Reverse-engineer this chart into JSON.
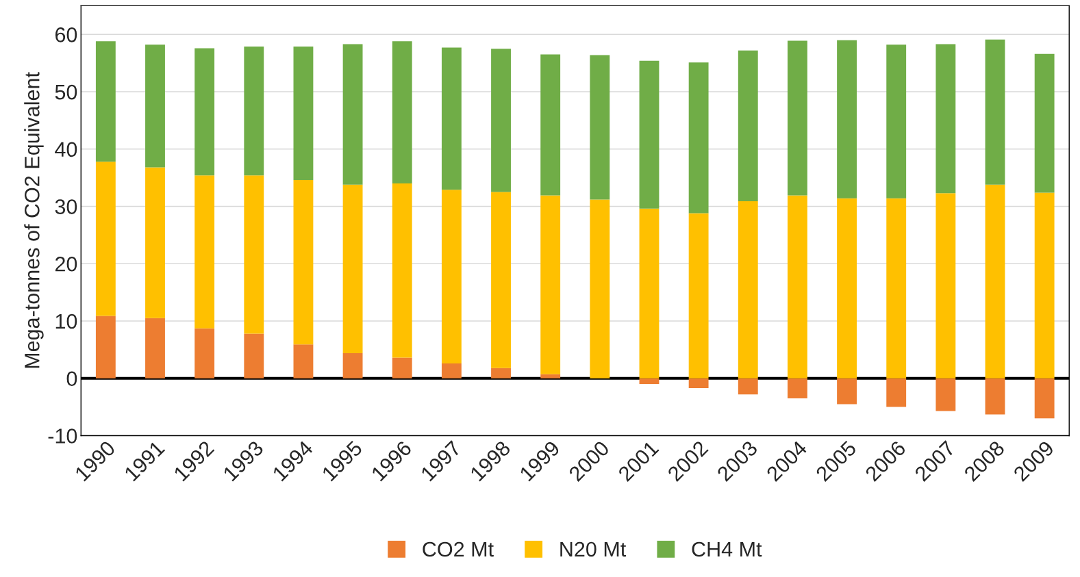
{
  "chart_data": {
    "type": "bar",
    "stacked": true,
    "ylabel": "Mega-tonnes of CO2 Equivalent",
    "categories": [
      "1990",
      "1991",
      "1992",
      "1993",
      "1994",
      "1995",
      "1996",
      "1997",
      "1998",
      "1999",
      "2000",
      "2001",
      "2002",
      "2003",
      "2004",
      "2005",
      "2006",
      "2007",
      "2008",
      "2009"
    ],
    "series": [
      {
        "name": "CO2 Mt",
        "color": "#ed7d31",
        "values": [
          10.9,
          10.5,
          8.7,
          7.8,
          5.9,
          4.4,
          3.6,
          2.6,
          1.8,
          0.7,
          0.0,
          -1.0,
          -1.7,
          -2.8,
          -3.5,
          -4.5,
          -5.0,
          -5.7,
          -6.3,
          -7.0
        ]
      },
      {
        "name": "N20 Mt",
        "color": "#ffc000",
        "values": [
          26.9,
          26.3,
          26.7,
          27.6,
          28.7,
          29.4,
          30.4,
          30.3,
          30.7,
          31.2,
          31.2,
          29.6,
          28.8,
          30.9,
          31.9,
          31.4,
          31.4,
          32.3,
          33.8,
          32.4
        ]
      },
      {
        "name": "CH4 Mt",
        "color": "#70ad47",
        "values": [
          21.0,
          21.4,
          22.2,
          22.5,
          23.3,
          24.5,
          24.8,
          24.8,
          25.0,
          24.6,
          25.2,
          25.8,
          26.3,
          26.3,
          27.0,
          27.6,
          26.8,
          26.0,
          25.3,
          24.2
        ]
      }
    ],
    "ylim": [
      -10,
      65
    ],
    "yticks": [
      -10,
      0,
      10,
      20,
      30,
      40,
      50,
      60
    ],
    "ref_lines": [
      {
        "axis": "y",
        "value": 0,
        "color": "#000000"
      }
    ],
    "grid": "y",
    "legend": "bottom"
  }
}
